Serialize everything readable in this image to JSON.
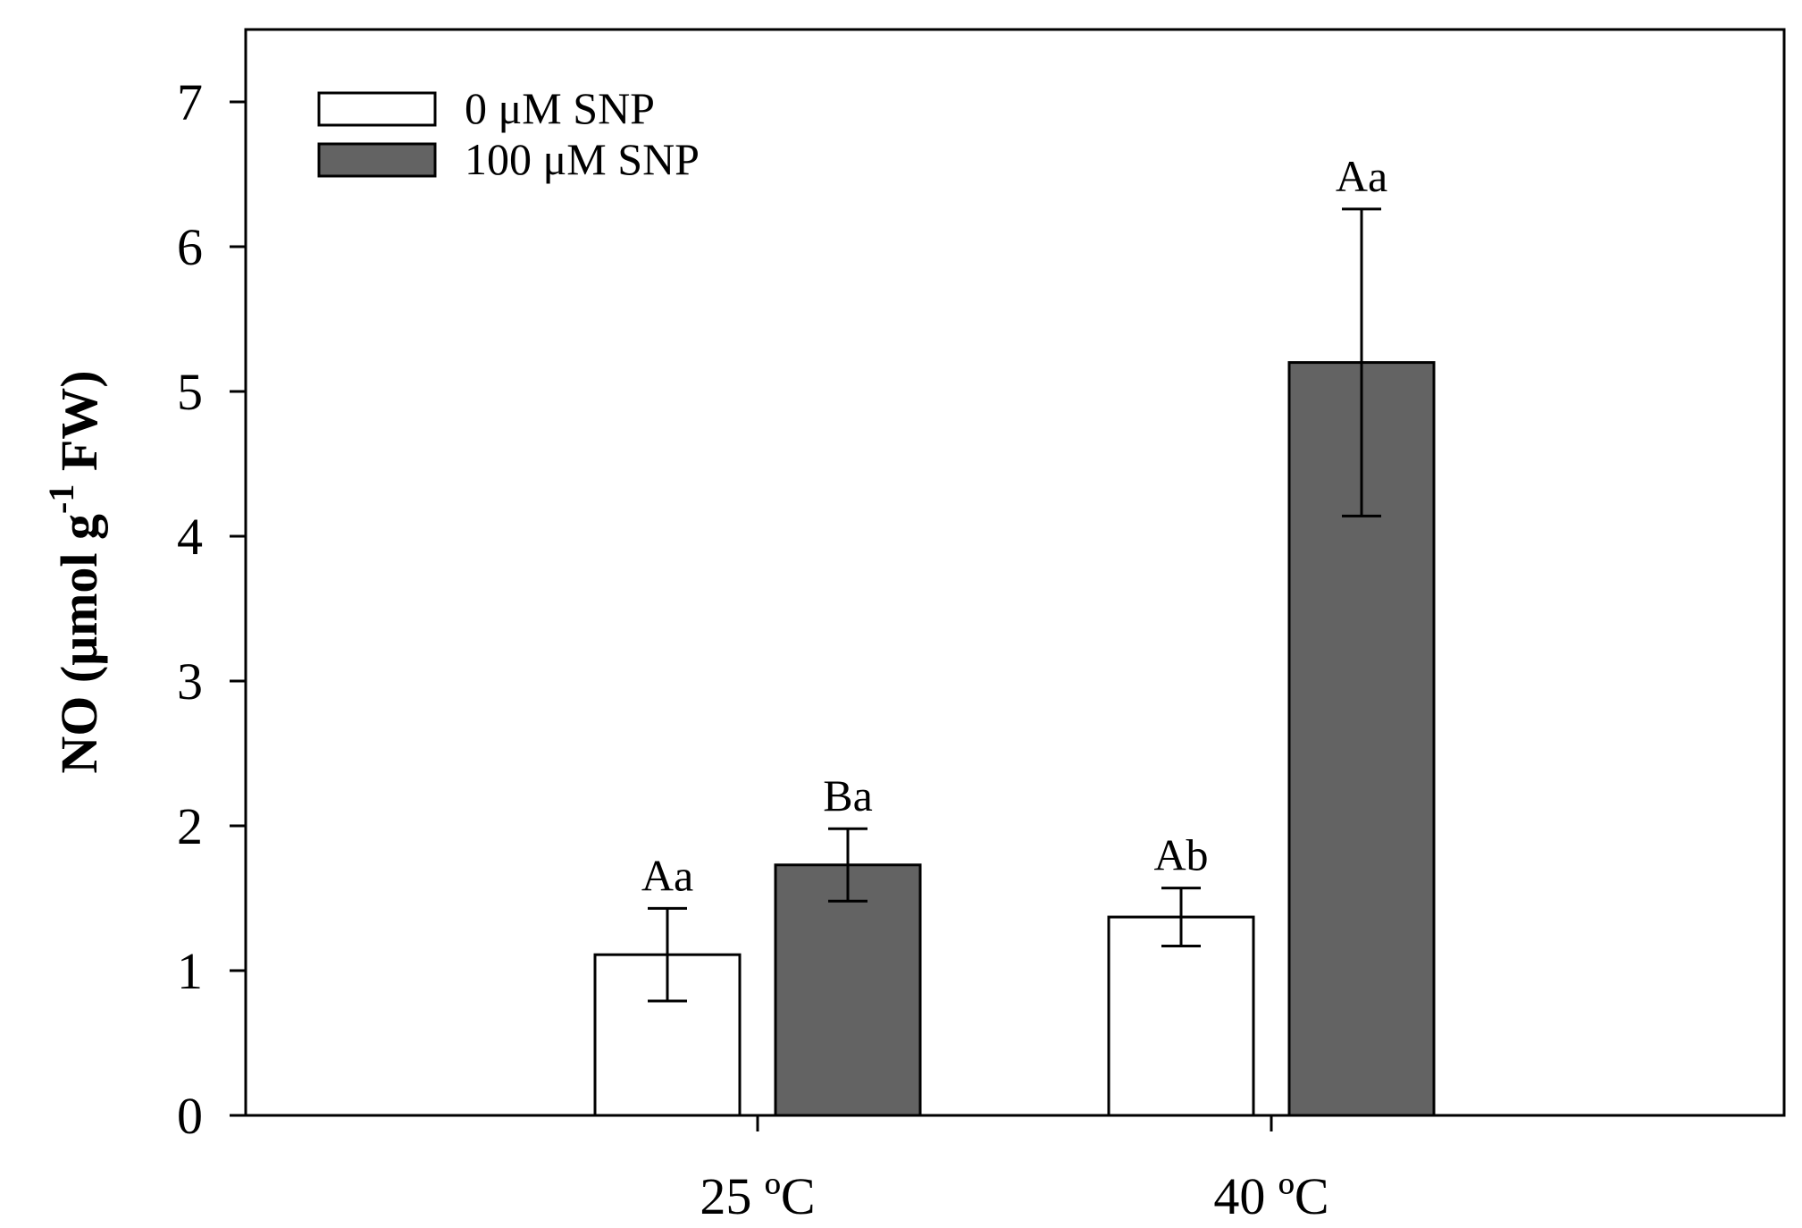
{
  "chart_data": {
    "type": "bar",
    "title": "",
    "xlabel": "",
    "ylabel": {
      "main": "NO (μmol g",
      "superscript": "-1",
      "suffix": " FW)"
    },
    "ylim": [
      0,
      7.5
    ],
    "yticks": [
      0,
      1,
      2,
      3,
      4,
      5,
      6,
      7
    ],
    "grid": false,
    "legend_position": "top-left",
    "categories": [
      "25 ºC",
      "40 ºC"
    ],
    "series": [
      {
        "name": "0 μM SNP",
        "color": "#ffffff",
        "values": [
          1.11,
          1.37
        ],
        "errors": [
          0.32,
          0.2
        ],
        "labels": [
          "Aa",
          "Ab"
        ]
      },
      {
        "name": "100 μM SNP",
        "color": "#636363",
        "values": [
          1.73,
          5.2
        ],
        "errors": [
          0.25,
          1.06
        ],
        "labels": [
          "Ba",
          "Aa"
        ]
      }
    ]
  }
}
